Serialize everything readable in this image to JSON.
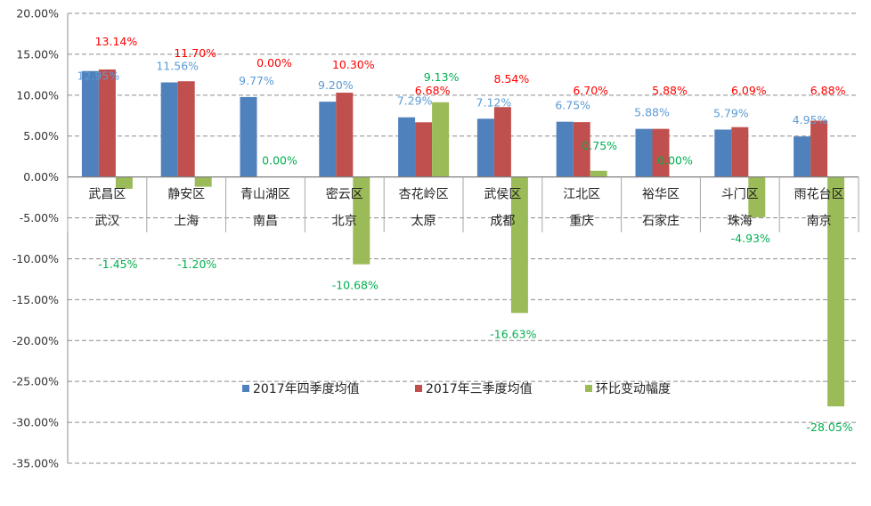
{
  "chart_data": {
    "type": "bar",
    "title": "",
    "xlabel": "",
    "ylabel": "",
    "ylim": [
      -35,
      20
    ],
    "ytick_step": 5,
    "ytick_labels": [
      "20.00%",
      "15.00%",
      "10.00%",
      "5.00%",
      "0.00%",
      "-5.00%",
      "-10.00%",
      "-15.00%",
      "-20.00%",
      "-25.00%",
      "-30.00%",
      "-35.00%"
    ],
    "grid": true,
    "legend_position": "bottom-center",
    "categories": [
      {
        "district": "武昌区",
        "city": "武汉"
      },
      {
        "district": "静安区",
        "city": "上海"
      },
      {
        "district": "青山湖区",
        "city": "南昌"
      },
      {
        "district": "密云区",
        "city": "北京"
      },
      {
        "district": "杏花岭区",
        "city": "太原"
      },
      {
        "district": "武侯区",
        "city": "成都"
      },
      {
        "district": "江北区",
        "city": "重庆"
      },
      {
        "district": "裕华区",
        "city": "石家庄"
      },
      {
        "district": "斗门区",
        "city": "珠海"
      },
      {
        "district": "雨花台区",
        "city": "南京"
      }
    ],
    "series": [
      {
        "name": "2017年四季度均值",
        "color": "#4f81bd",
        "label_color": "#5b9bd5",
        "values": [
          12.95,
          11.56,
          9.77,
          9.2,
          7.29,
          7.12,
          6.75,
          5.88,
          5.79,
          4.95
        ],
        "labels": [
          "12.95%",
          "11.56%",
          "9.77%",
          "9.20%",
          "7.29%",
          "7.12%",
          "6.75%",
          "5.88%",
          "5.79%",
          "4.95%"
        ]
      },
      {
        "name": "2017年三季度均值",
        "color": "#c0504d",
        "label_color": "#ff0000",
        "values": [
          13.14,
          11.7,
          0.0,
          10.3,
          6.68,
          8.54,
          6.7,
          5.88,
          6.09,
          6.88
        ],
        "labels": [
          "13.14%",
          "11.70%",
          "0.00%",
          "10.30%",
          "6.68%",
          "8.54%",
          "6.70%",
          "5.88%",
          "6.09%",
          "6.88%"
        ]
      },
      {
        "name": "环比变动幅度",
        "color": "#9bbb59",
        "label_color": "#00b050",
        "values": [
          -1.45,
          -1.2,
          0.0,
          -10.68,
          9.13,
          -16.63,
          0.75,
          0.0,
          -4.93,
          -28.05
        ],
        "labels": [
          "-1.45%",
          "-1.20%",
          "0.00%",
          "-10.68%",
          "9.13%",
          "-16.63%",
          "0.75%",
          "0.00%",
          "-4.93%",
          "-28.05%"
        ]
      }
    ]
  }
}
